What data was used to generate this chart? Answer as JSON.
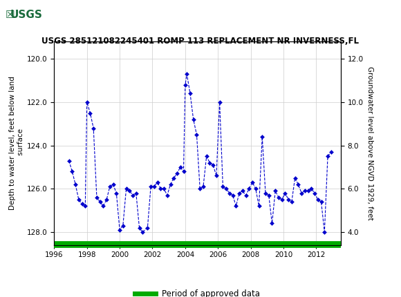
{
  "title": "USGS 285121082245401 ROMP 113 REPLACEMENT NR INVERNESS,FL",
  "ylabel_left": "Depth to water level, feet below land\n surface",
  "ylabel_right": "Groundwater level above NGVD 1929, feet",
  "ylim_left": [
    128.6,
    119.2
  ],
  "ylim_right": [
    3.5,
    13.0
  ],
  "yticks_left": [
    120.0,
    122.0,
    124.0,
    126.0,
    128.0
  ],
  "yticks_right": [
    4.0,
    6.0,
    8.0,
    10.0,
    12.0
  ],
  "xlim": [
    1996,
    2013.5
  ],
  "xticks": [
    1996,
    1998,
    2000,
    2002,
    2004,
    2006,
    2008,
    2010,
    2012
  ],
  "header_color": "#1a6b3c",
  "line_color": "#0000cc",
  "marker_color": "#0000cc",
  "grid_color": "#cccccc",
  "legend_label": "Period of approved data",
  "legend_color": "#00aa00",
  "years": [
    1996.9,
    1997.1,
    1997.3,
    1997.5,
    1997.7,
    1997.9,
    1998.0,
    1998.2,
    1998.4,
    1998.6,
    1998.8,
    1999.0,
    1999.2,
    1999.4,
    1999.6,
    1999.8,
    2000.0,
    2000.2,
    2000.4,
    2000.6,
    2000.8,
    2001.0,
    2001.2,
    2001.4,
    2001.7,
    2001.9,
    2002.1,
    2002.3,
    2002.5,
    2002.7,
    2002.9,
    2003.1,
    2003.3,
    2003.5,
    2003.7,
    2003.9,
    2004.0,
    2004.1,
    2004.3,
    2004.5,
    2004.7,
    2004.9,
    2005.1,
    2005.3,
    2005.5,
    2005.7,
    2005.9,
    2006.1,
    2006.3,
    2006.5,
    2006.7,
    2006.9,
    2007.1,
    2007.3,
    2007.5,
    2007.7,
    2007.9,
    2008.1,
    2008.3,
    2008.5,
    2008.7,
    2008.9,
    2009.1,
    2009.3,
    2009.5,
    2009.7,
    2009.9,
    2010.1,
    2010.3,
    2010.5,
    2010.7,
    2010.9,
    2011.1,
    2011.3,
    2011.5,
    2011.7,
    2011.9,
    2012.1,
    2012.3,
    2012.5,
    2012.7,
    2012.9
  ],
  "depth_values": [
    124.7,
    125.2,
    125.8,
    126.5,
    126.7,
    126.8,
    122.0,
    122.5,
    123.2,
    126.4,
    126.6,
    126.8,
    126.5,
    125.9,
    125.8,
    126.2,
    127.9,
    127.7,
    126.0,
    126.1,
    126.3,
    126.2,
    127.8,
    128.0,
    127.8,
    125.9,
    125.9,
    125.7,
    126.0,
    126.0,
    126.3,
    125.8,
    125.5,
    125.3,
    125.0,
    125.2,
    121.2,
    120.7,
    121.6,
    122.8,
    123.5,
    126.0,
    125.9,
    124.5,
    124.8,
    124.9,
    125.4,
    122.0,
    125.9,
    126.0,
    126.2,
    126.3,
    126.8,
    126.2,
    126.1,
    126.3,
    126.0,
    125.7,
    126.0,
    126.8,
    123.6,
    126.2,
    126.3,
    127.6,
    126.1,
    126.4,
    126.5,
    126.2,
    126.5,
    126.6,
    125.5,
    125.8,
    126.2,
    126.1,
    126.1,
    126.0,
    126.2,
    126.5,
    126.6,
    128.0,
    124.5,
    124.3
  ]
}
